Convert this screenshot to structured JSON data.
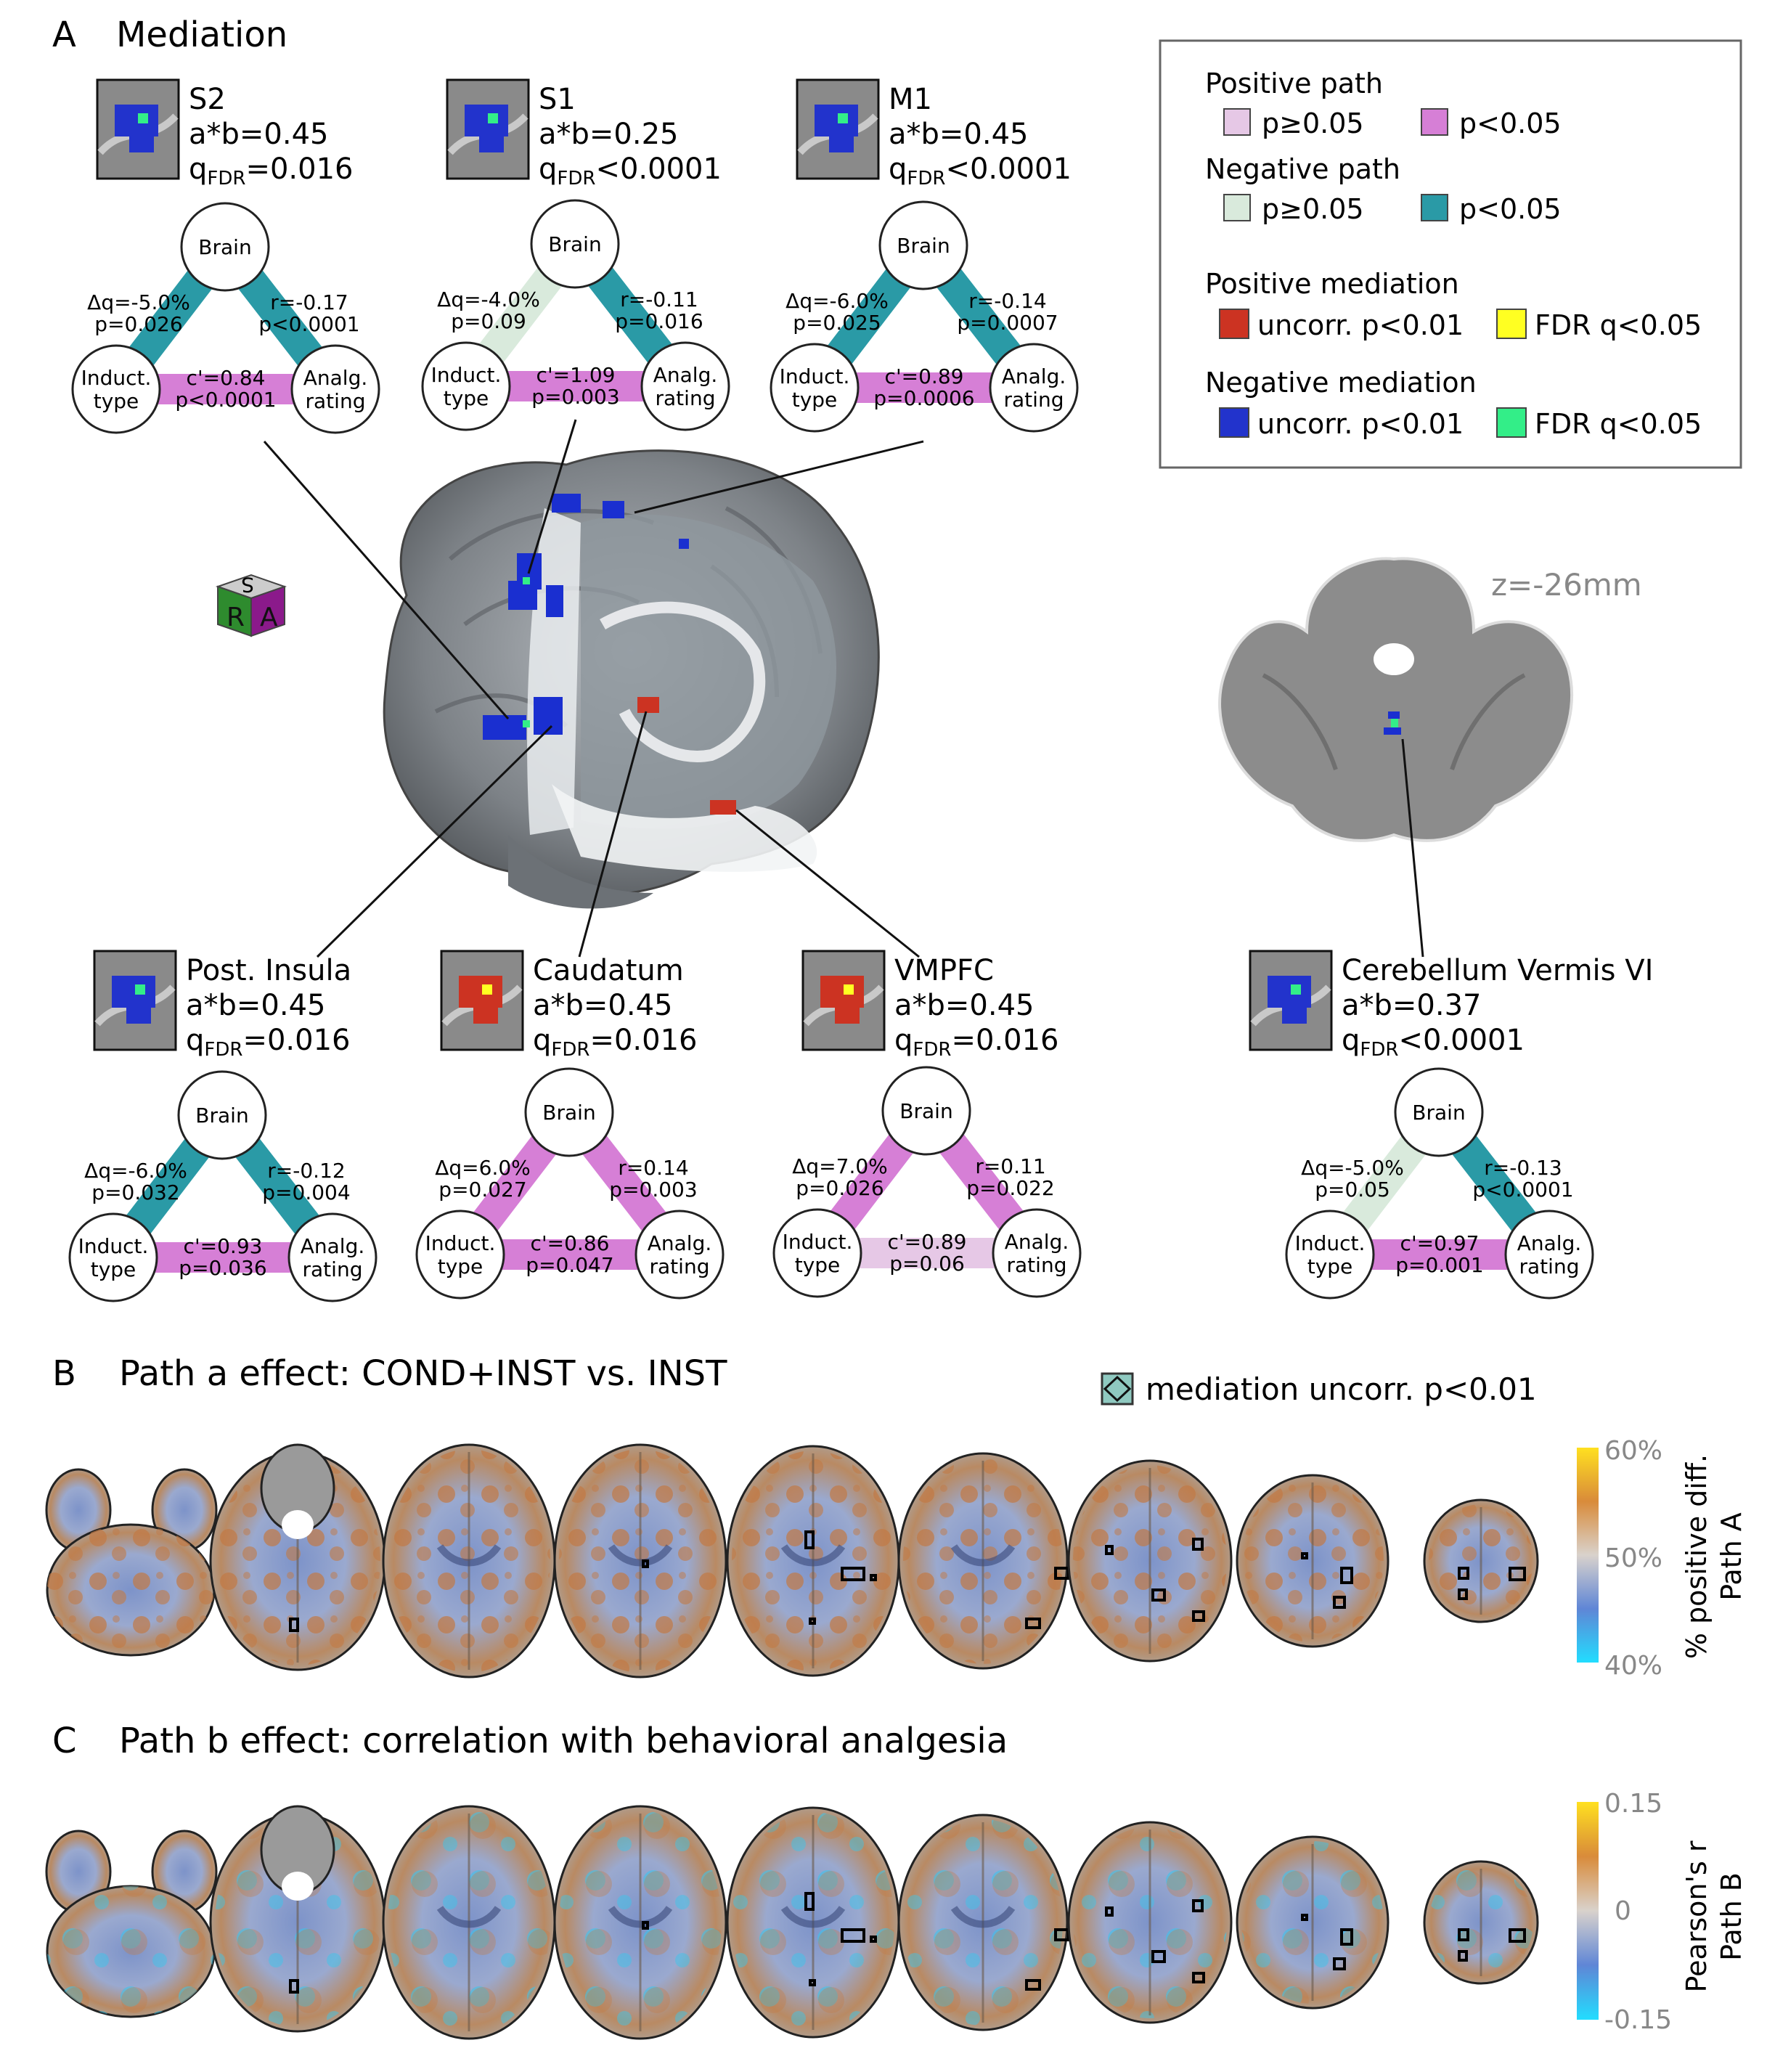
{
  "panel_a": {
    "letter": "A",
    "title": "Mediation",
    "orientation_cube": {
      "labels": [
        "S",
        "R",
        "A"
      ],
      "colors": [
        "#2e8b2e",
        "#8b1a8b",
        "#bbbbbb"
      ]
    },
    "slice_label": "z=-26mm",
    "legend": {
      "positive_path": {
        "title": "Positive path",
        "ns": "p≥0.05",
        "sig": "p<0.05",
        "ns_color": "#e6c8e6",
        "sig_color": "#d67fd6"
      },
      "negative_path": {
        "title": "Negative path",
        "ns": "p≥0.05",
        "sig": "p<0.05",
        "ns_color": "#d9eadc",
        "sig_color": "#2a9aa6"
      },
      "positive_mediation": {
        "title": "Positive mediation",
        "uncorr": "uncorr. p<0.01",
        "fdr": "FDR q<0.05",
        "uncorr_color": "#cc3322",
        "fdr_color": "#ffff22"
      },
      "negative_mediation": {
        "title": "Negative mediation",
        "uncorr": "uncorr. p<0.01",
        "fdr": "FDR q<0.05",
        "uncorr_color": "#2233cc",
        "fdr_color": "#33ee88"
      }
    },
    "node_labels": {
      "brain": "Brain",
      "induct_1": "Induct.",
      "induct_2": "type",
      "analg_1": "Analg.",
      "analg_2": "rating"
    },
    "regions": [
      {
        "name": "S2",
        "ab": "a*b=0.45",
        "q_op": "=",
        "q_val": "0.016",
        "blob": "neg",
        "dq": "Δq=-5.0%",
        "pa": "p=0.026",
        "r": "r=-0.17",
        "pb": "p<0.0001",
        "c": "c'=0.84",
        "pc": "p<0.0001",
        "path_a": "neg_sig",
        "path_b": "neg_sig",
        "path_c": "pos_sig"
      },
      {
        "name": "S1",
        "ab": "a*b=0.25",
        "q_op": "<",
        "q_val": "0.0001",
        "blob": "neg",
        "dq": "Δq=-4.0%",
        "pa": "p=0.09",
        "r": "r=-0.11",
        "pb": "p=0.016",
        "c": "c'=1.09",
        "pc": "p=0.003",
        "path_a": "neg_ns",
        "path_b": "neg_sig",
        "path_c": "pos_sig"
      },
      {
        "name": "M1",
        "ab": "a*b=0.45",
        "q_op": "<",
        "q_val": "0.0001",
        "blob": "neg",
        "dq": "Δq=-6.0%",
        "pa": "p=0.025",
        "r": "r=-0.14",
        "pb": "p=0.0007",
        "c": "c'=0.89",
        "pc": "p=0.0006",
        "path_a": "neg_sig",
        "path_b": "neg_sig",
        "path_c": "pos_sig"
      },
      {
        "name": "Post. Insula",
        "ab": "a*b=0.45",
        "q_op": "=",
        "q_val": "0.016",
        "blob": "neg",
        "dq": "Δq=-6.0%",
        "pa": "p=0.032",
        "r": "r=-0.12",
        "pb": "p=0.004",
        "c": "c'=0.93",
        "pc": "p=0.036",
        "path_a": "neg_sig",
        "path_b": "neg_sig",
        "path_c": "pos_sig"
      },
      {
        "name": "Caudatum",
        "ab": "a*b=0.45",
        "q_op": "=",
        "q_val": "0.016",
        "blob": "pos",
        "dq": "Δq=6.0%",
        "pa": "p=0.027",
        "r": "r=0.14",
        "pb": "p=0.003",
        "c": "c'=0.86",
        "pc": "p=0.047",
        "path_a": "pos_sig",
        "path_b": "pos_sig",
        "path_c": "pos_sig"
      },
      {
        "name": "VMPFC",
        "ab": "a*b=0.45",
        "q_op": "=",
        "q_val": "0.016",
        "blob": "pos",
        "dq": "Δq=7.0%",
        "pa": "p=0.026",
        "r": "r=0.11",
        "pb": "p=0.022",
        "c": "c'=0.89",
        "pc": "p=0.06",
        "path_a": "pos_sig",
        "path_b": "pos_sig",
        "path_c": "pos_ns"
      },
      {
        "name": "Cerebellum Vermis VI",
        "ab": "a*b=0.37",
        "q_op": "<",
        "q_val": "0.0001",
        "blob": "neg",
        "dq": "Δq=-5.0%",
        "pa": "p=0.05",
        "r": "r=-0.13",
        "pb": "p<0.0001",
        "c": "c'=0.97",
        "pc": "p=0.001",
        "path_a": "neg_ns",
        "path_b": "neg_sig",
        "path_c": "pos_sig"
      }
    ],
    "q_prefix": "q",
    "q_sub": "FDR"
  },
  "panel_b": {
    "letter": "B",
    "title": "Path a effect: COND+INST vs. INST",
    "mediation_key": "mediation uncorr. p<0.01",
    "colorbar": {
      "ticks": [
        "60%",
        "50%",
        "40%"
      ],
      "label_1": "% positive diff.",
      "label_2": "Path A",
      "top_color": "#ffe020",
      "mid_color": "#d9d2cc",
      "bottom_color": "#22ddff"
    }
  },
  "panel_c": {
    "letter": "C",
    "title": "Path b effect: correlation with behavioral analgesia",
    "colorbar": {
      "ticks": [
        "0.15",
        "0",
        "-0.15"
      ],
      "label_1": "Pearson's r",
      "label_2": "Path B",
      "top_color": "#ffe020",
      "mid_color": "#d9d2cc",
      "bottom_color": "#22ddff"
    }
  }
}
